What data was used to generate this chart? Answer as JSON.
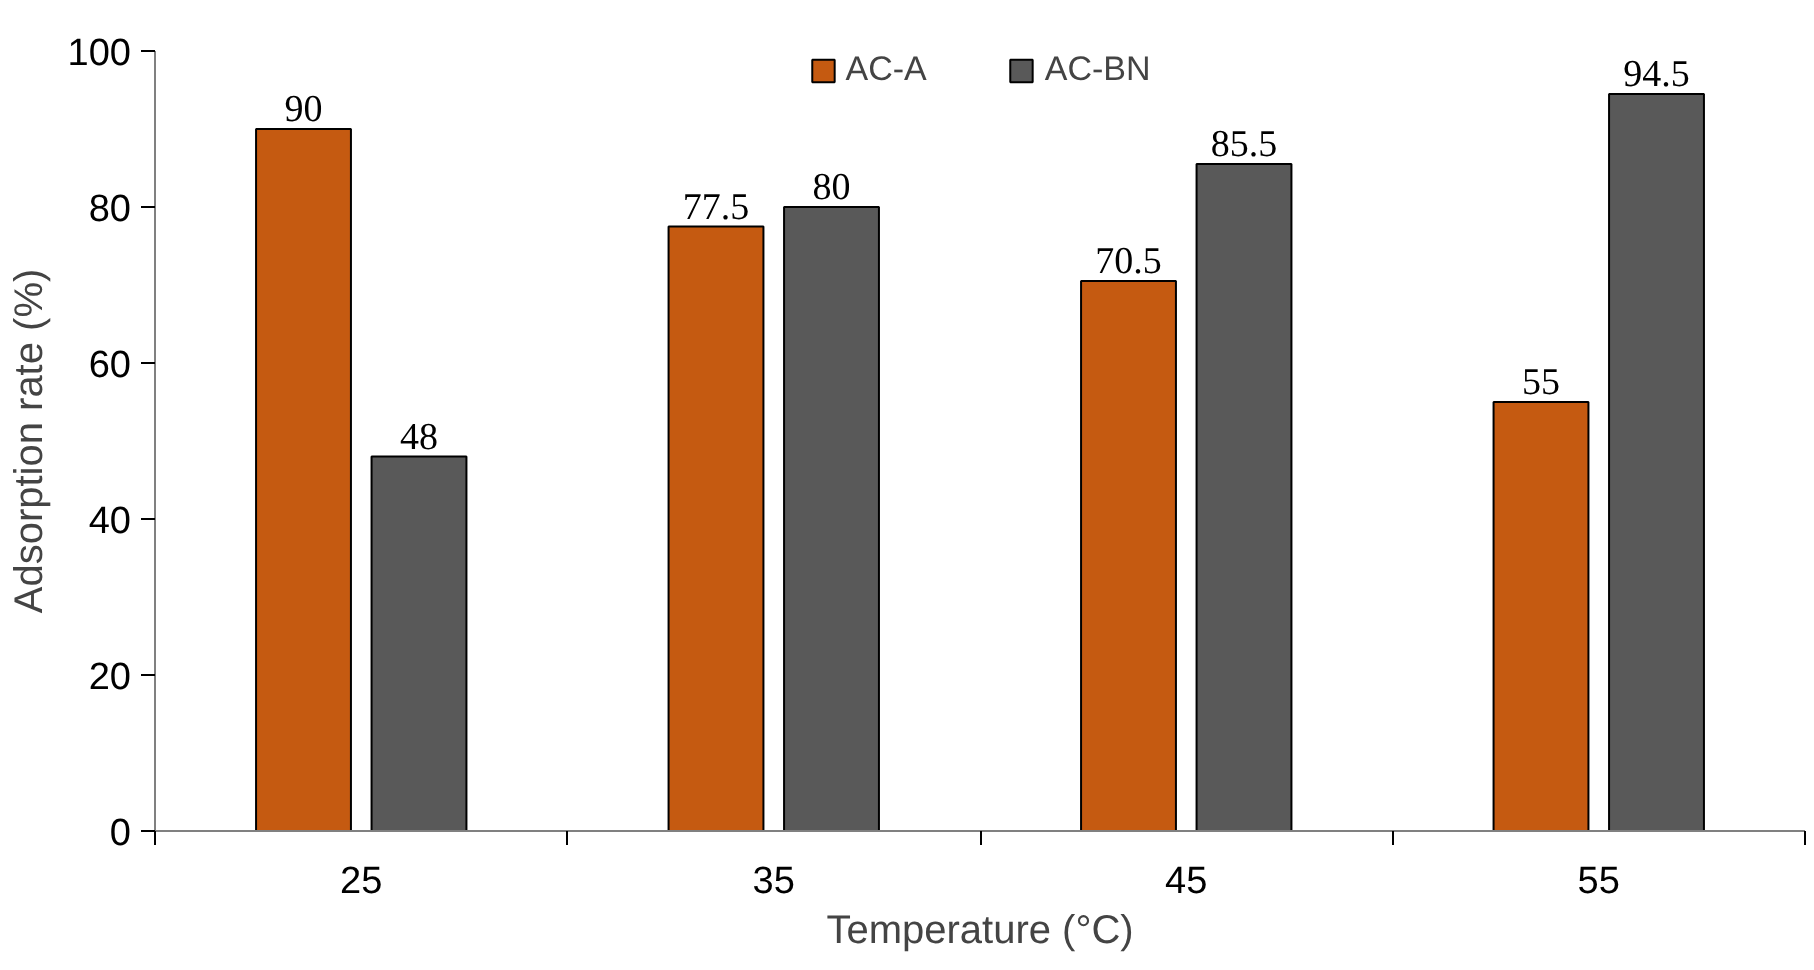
{
  "chart_data": {
    "type": "bar",
    "xlabel": "Temperature (°C)",
    "ylabel": "Adsorption rate (%)",
    "categories": [
      "25",
      "35",
      "45",
      "55"
    ],
    "series": [
      {
        "name": "AC-A",
        "color": "#c55a11",
        "values": [
          90,
          77.5,
          70.5,
          55
        ]
      },
      {
        "name": "AC-BN",
        "color": "#595959",
        "values": [
          48,
          80,
          85.5,
          94.5
        ]
      }
    ],
    "ylim": [
      0,
      100
    ],
    "yticks": [
      0,
      20,
      40,
      60,
      80,
      100
    ],
    "grid": false,
    "legend": "top",
    "data_labels": true
  }
}
